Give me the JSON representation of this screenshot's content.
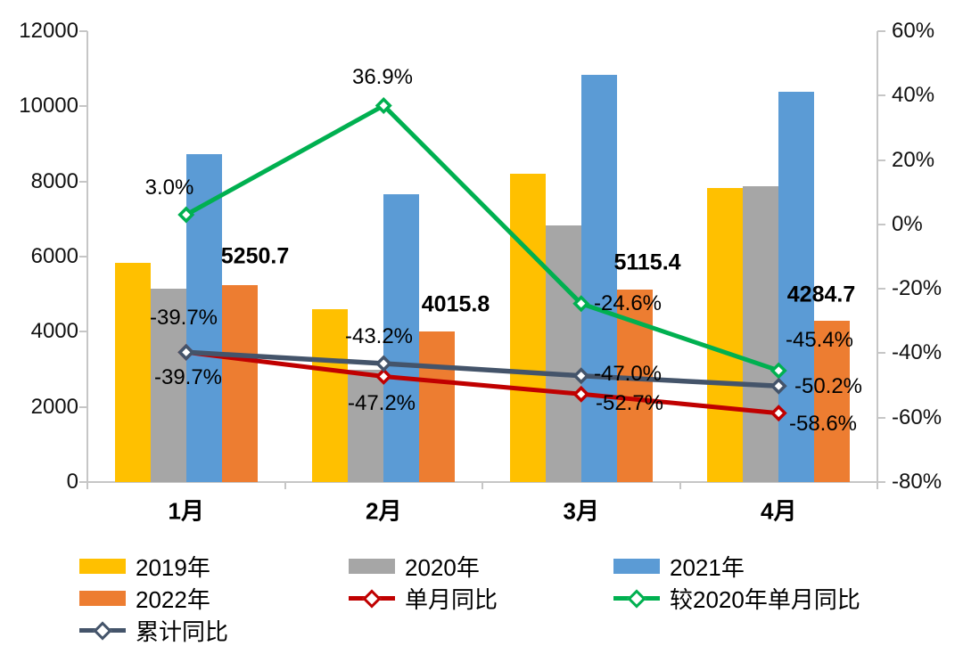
{
  "chart_data": {
    "type": "bar",
    "subtype": "grouped-bars-with-lines-combo",
    "title": "",
    "categories": [
      "1月",
      "2月",
      "3月",
      "4月"
    ],
    "left_axis": {
      "min": 0,
      "max": 12000,
      "step": 2000,
      "ticks": [
        "0",
        "2000",
        "4000",
        "6000",
        "8000",
        "10000",
        "12000"
      ]
    },
    "right_axis": {
      "min": -80,
      "max": 60,
      "step": 20,
      "ticks": [
        "-80%",
        "-60%",
        "-40%",
        "-20%",
        "0%",
        "20%",
        "40%",
        "60%"
      ]
    },
    "bar_series": [
      {
        "name": "2019年",
        "color": "#FFC000",
        "values": [
          5830,
          4600,
          8200,
          7820
        ]
      },
      {
        "name": "2020年",
        "color": "#A6A6A6",
        "values": [
          5140,
          2980,
          6830,
          7870
        ]
      },
      {
        "name": "2021年",
        "color": "#5B9BD5",
        "values": [
          8720,
          7650,
          10830,
          10380
        ]
      },
      {
        "name": "2022年",
        "color": "#ED7D31",
        "values": [
          5250.7,
          4015.8,
          5115.4,
          4284.7
        ],
        "labels": [
          "5250.7",
          "4015.8",
          "5115.4",
          "4284.7"
        ]
      }
    ],
    "line_series": [
      {
        "name": "单月同比",
        "color": "#C00000",
        "values": [
          -39.7,
          -47.2,
          -52.7,
          -58.6
        ],
        "labels": [
          "-39.7%",
          "-47.2%",
          "-52.7%",
          "-58.6%"
        ]
      },
      {
        "name": "较2020年单月同比",
        "color": "#00B050",
        "values": [
          3.0,
          36.9,
          -24.6,
          -45.4
        ],
        "labels": [
          "3.0%",
          "36.9%",
          "-24.6%",
          "-45.4%"
        ]
      },
      {
        "name": "累计同比",
        "color": "#44546A",
        "values": [
          -39.7,
          -43.2,
          -47.0,
          -50.2
        ],
        "labels": [
          "-39.7%",
          "-43.2%",
          "-47.0%",
          "-50.2%"
        ]
      }
    ],
    "legend": [
      {
        "label": "2019年",
        "type": "bar",
        "color": "#FFC000"
      },
      {
        "label": "2020年",
        "type": "bar",
        "color": "#A6A6A6"
      },
      {
        "label": "2021年",
        "type": "bar",
        "color": "#5B9BD5"
      },
      {
        "label": "2022年",
        "type": "bar",
        "color": "#ED7D31"
      },
      {
        "label": "单月同比",
        "type": "line",
        "color": "#C00000"
      },
      {
        "label": "较2020年单月同比",
        "type": "line",
        "color": "#00B050"
      },
      {
        "label": "累计同比",
        "type": "line",
        "color": "#44546A"
      }
    ],
    "legend_position": "bottom-left",
    "grid": "off",
    "colors": {
      "axis_line": "#C6C6C6",
      "text": "#000000",
      "background": "#FFFFFF"
    }
  }
}
